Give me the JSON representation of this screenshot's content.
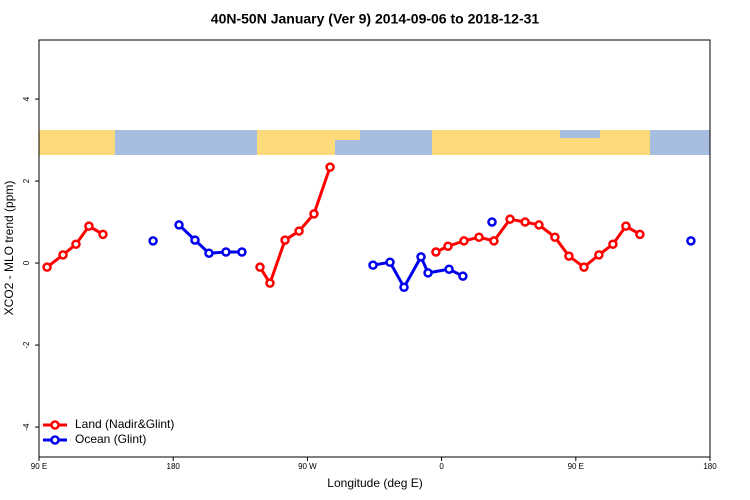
{
  "chart_data": {
    "type": "line",
    "title": "40N-50N January (Ver 9)   2014-09-06 to 2018-12-31",
    "x_label": "Longitude (deg E)",
    "y_label": "XCO2 - MLO trend (ppm)",
    "xlim": [
      90,
      540
    ],
    "ylim": [
      -4.73,
      5.44
    ],
    "xticks": [
      {
        "value": 90,
        "label": "90 E"
      },
      {
        "value": 180,
        "label": "180"
      },
      {
        "value": 270,
        "label": "90 W"
      },
      {
        "value": 360,
        "label": "0"
      },
      {
        "value": 450,
        "label": "90 E"
      },
      {
        "value": 540,
        "label": "180"
      }
    ],
    "yticks": [
      -4,
      -2,
      0,
      2,
      4
    ],
    "legend": "bottom-left",
    "series": [
      {
        "name": "Land (Nadir&Glint)",
        "color": "#ff0000",
        "x": [
          95.4,
          106.1,
          114.8,
          123.5,
          132.9,
          null,
          238.2,
          244.9,
          255.0,
          264.4,
          274.4,
          285.2,
          null,
          356.2,
          364.3,
          375.0,
          385.1,
          395.1,
          405.9,
          416.0,
          425.3,
          436.0,
          445.4,
          455.5,
          465.5,
          474.9,
          483.6,
          493.0
        ],
        "values": [
          -0.1,
          0.2,
          0.46,
          0.9,
          0.7,
          null,
          -0.1,
          -0.49,
          0.56,
          0.78,
          1.2,
          2.34,
          null,
          0.27,
          0.41,
          0.54,
          0.63,
          0.54,
          1.07,
          1.0,
          0.93,
          0.63,
          0.17,
          -0.1,
          0.2,
          0.46,
          0.9,
          0.7
        ]
      },
      {
        "name": "Ocean (Glint)",
        "color": "#0000ee",
        "x": [
          166.5,
          null,
          183.9,
          194.6,
          204.0,
          215.4,
          226.1,
          null,
          314.0,
          325.4,
          334.8,
          346.2,
          350.9,
          365.0,
          374.3,
          null,
          393.8,
          null,
          527.2
        ],
        "values": [
          0.54,
          null,
          0.93,
          0.56,
          0.24,
          0.27,
          0.27,
          null,
          -0.05,
          0.02,
          -0.59,
          0.15,
          -0.24,
          -0.15,
          -0.32,
          null,
          1.0,
          null,
          0.54
        ]
      }
    ]
  }
}
